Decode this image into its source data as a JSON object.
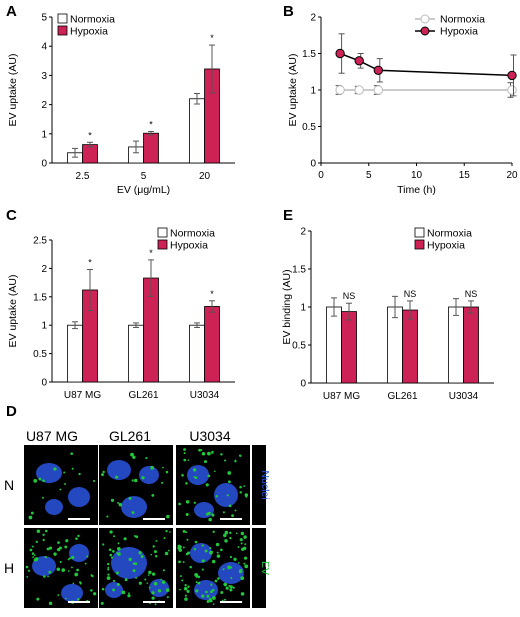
{
  "colors": {
    "normoxia": "#ffffff",
    "hypoxia": "#cc2255",
    "axis": "#000000",
    "nuclei": "#2a55e0",
    "ev": "#22c83c",
    "panel_bg": "#000000"
  },
  "chart_data": [
    {
      "id": "A",
      "panel_label": "A",
      "type": "bar",
      "categories": [
        "2.5",
        "5",
        "20"
      ],
      "xlabel": "EV (μg/mL)",
      "ylabel": "EV uptake (AU)",
      "ylim": [
        0,
        5
      ],
      "yticks": [
        "0",
        "1",
        "2",
        "3",
        "4",
        "5"
      ],
      "legend": {
        "placement": "top-left"
      },
      "series": [
        {
          "name": "Normoxia",
          "values": [
            0.35,
            0.55,
            2.2
          ],
          "errors": [
            0.15,
            0.2,
            0.18
          ]
        },
        {
          "name": "Hypoxia",
          "values": [
            0.63,
            1.02,
            3.22
          ],
          "errors": [
            0.08,
            0.06,
            0.82
          ]
        }
      ],
      "annotations": [
        "*",
        "*",
        "*"
      ]
    },
    {
      "id": "B",
      "panel_label": "B",
      "type": "line",
      "xlabel": "Time (h)",
      "ylabel": "EV uptake (AU)",
      "xlim": [
        0,
        20
      ],
      "xticks": [
        "0",
        "5",
        "10",
        "15",
        "20"
      ],
      "ylim": [
        0,
        2
      ],
      "yticks": [
        "0",
        "0.5",
        "1",
        "1.5",
        "2"
      ],
      "legend": {
        "placement": "top-right"
      },
      "series": [
        {
          "name": "Normoxia",
          "x": [
            2,
            4,
            6,
            20
          ],
          "values": [
            1.0,
            1.0,
            1.0,
            1.0
          ],
          "errors": [
            0.06,
            0.05,
            0.06,
            0.1
          ]
        },
        {
          "name": "Hypoxia",
          "x": [
            2,
            4,
            6,
            20
          ],
          "values": [
            1.5,
            1.4,
            1.27,
            1.2
          ],
          "errors": [
            0.27,
            0.1,
            0.16,
            0.28
          ]
        }
      ]
    },
    {
      "id": "C",
      "panel_label": "C",
      "type": "bar",
      "categories": [
        "U87 MG",
        "GL261",
        "U3034"
      ],
      "xlabel": "",
      "ylabel": "EV uptake (AU)",
      "ylim": [
        0,
        2.5
      ],
      "yticks": [
        "0",
        "0.5",
        "1",
        "1.5",
        "2",
        "2.5"
      ],
      "legend": {
        "placement": "top-right"
      },
      "series": [
        {
          "name": "Normoxia",
          "values": [
            1.0,
            1.0,
            1.0
          ],
          "errors": [
            0.06,
            0.04,
            0.04
          ]
        },
        {
          "name": "Hypoxia",
          "values": [
            1.62,
            1.83,
            1.33
          ],
          "errors": [
            0.36,
            0.32,
            0.1
          ]
        }
      ],
      "annotations": [
        "*",
        "*",
        "*"
      ]
    },
    {
      "id": "E",
      "panel_label": "E",
      "type": "bar",
      "categories": [
        "U87 MG",
        "GL261",
        "U3034"
      ],
      "xlabel": "",
      "ylabel": "EV binding (AU)",
      "ylim": [
        0,
        2
      ],
      "yticks": [
        "0",
        "0.5",
        "1",
        "1.5",
        "2"
      ],
      "legend": {
        "placement": "top-right"
      },
      "series": [
        {
          "name": "Normoxia",
          "values": [
            1.0,
            1.0,
            1.0
          ],
          "errors": [
            0.12,
            0.14,
            0.11
          ]
        },
        {
          "name": "Hypoxia",
          "values": [
            0.94,
            0.96,
            1.0
          ],
          "errors": [
            0.11,
            0.12,
            0.08
          ]
        }
      ],
      "annotations": [
        "NS",
        "NS",
        "NS"
      ]
    }
  ],
  "micrographs": {
    "panel_label": "D",
    "columns": [
      "U87 MG",
      "GL261",
      "U3034"
    ],
    "rows": [
      "N",
      "H"
    ],
    "channel_labels": [
      "Nuclei",
      "EV"
    ]
  }
}
